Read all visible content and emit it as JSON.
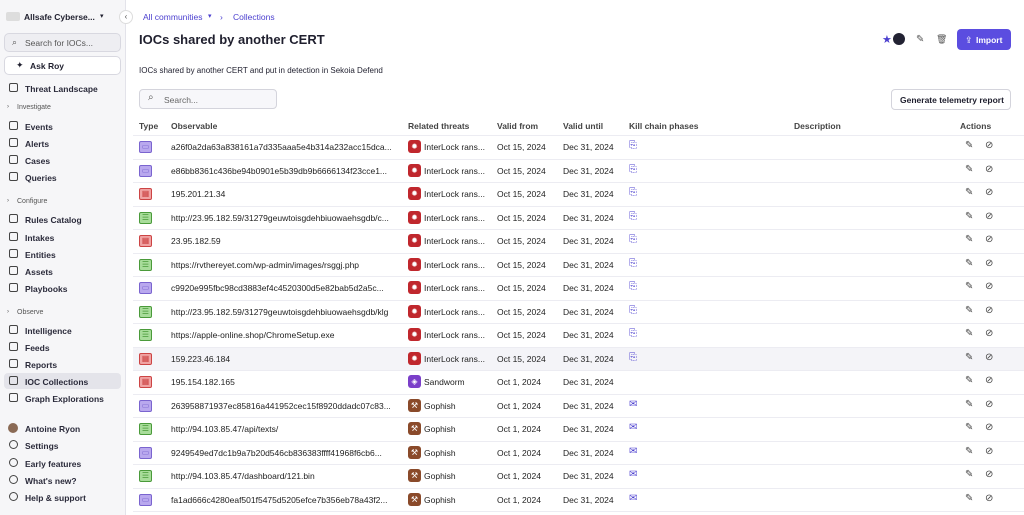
{
  "sidebar": {
    "org": "Allsafe Cyberse...",
    "search": "Search for IOCs...",
    "ask": "Ask Roy",
    "nav": [
      "Threat Landscape",
      "Investigate",
      "Events",
      "Alerts",
      "Cases",
      "Queries",
      "Configure",
      "Rules Catalog",
      "Intakes",
      "Entities",
      "Assets",
      "Playbooks",
      "Observe",
      "Intelligence",
      "Feeds",
      "Reports",
      "IOC Collections",
      "Graph Explorations",
      "Antoine Ryon",
      "Settings",
      "Early features",
      "What's new?",
      "Help & support"
    ]
  },
  "breadcrumb": [
    "All communities",
    "Collections"
  ],
  "header": {
    "title": "IOCs shared by another CERT",
    "import": "Import",
    "description": "IOCs shared by another CERT and put in detection in Sekoia Defend"
  },
  "toolbar": {
    "search": "Search...",
    "report": "Generate telemetry report"
  },
  "table": {
    "columns": [
      "Type",
      "Observable",
      "Related threats",
      "Valid from",
      "Valid until",
      "Kill chain phases",
      "Description",
      "Actions"
    ],
    "rows": [
      [
        "a26f0a2da63a838161a7d335aaa5e4b314a232acc15dca...",
        "InterLock rans...",
        "Oct 15, 2024",
        "Dec 31, 2024"
      ],
      [
        "e86bb8361c436be94b0901e5b39db9b6666134f23cce1...",
        "InterLock rans...",
        "Oct 15, 2024",
        "Dec 31, 2024"
      ],
      [
        "195.201.21.34",
        "InterLock rans...",
        "Oct 15, 2024",
        "Dec 31, 2024"
      ],
      [
        "http://23.95.182.59/31279geuwtoisgdehbiuowaehsgdb/c...",
        "InterLock rans...",
        "Oct 15, 2024",
        "Dec 31, 2024"
      ],
      [
        "23.95.182.59",
        "InterLock rans...",
        "Oct 15, 2024",
        "Dec 31, 2024"
      ],
      [
        "https://rvthereyet.com/wp-admin/images/rsggj.php",
        "InterLock rans...",
        "Oct 15, 2024",
        "Dec 31, 2024"
      ],
      [
        "c9920e995fbc98cd3883ef4c4520300d5e82bab5d2a5c...",
        "InterLock rans...",
        "Oct 15, 2024",
        "Dec 31, 2024"
      ],
      [
        "http://23.95.182.59/31279geuwtoisgdehbiuowaehsgdb/klg",
        "InterLock rans...",
        "Oct 15, 2024",
        "Dec 31, 2024"
      ],
      [
        "https://apple-online.shop/ChromeSetup.exe",
        "InterLock rans...",
        "Oct 15, 2024",
        "Dec 31, 2024"
      ],
      [
        "159.223.46.184",
        "InterLock rans...",
        "Oct 15, 2024",
        "Dec 31, 2024"
      ],
      [
        "195.154.182.165",
        "Sandworm",
        "Oct 1, 2024",
        "Dec 31, 2024"
      ],
      [
        "263958871937ec85816a441952cec15f8920ddadc07c83...",
        "Gophish",
        "Oct 1, 2024",
        "Dec 31, 2024"
      ],
      [
        "http://94.103.85.47/api/texts/",
        "Gophish",
        "Oct 1, 2024",
        "Dec 31, 2024"
      ],
      [
        "9249549ed7dc1b9a7b20d546cb836383ffff41968f6cb6...",
        "Gophish",
        "Oct 1, 2024",
        "Dec 31, 2024"
      ],
      [
        "http://94.103.85.47/dashboard/121.bin",
        "Gophish",
        "Oct 1, 2024",
        "Dec 31, 2024"
      ],
      [
        "fa1ad666c4280eaf501f5475d5205efce7b356eb78a43f2...",
        "Gophish",
        "Oct 1, 2024",
        "Dec 31, 2024"
      ]
    ]
  }
}
